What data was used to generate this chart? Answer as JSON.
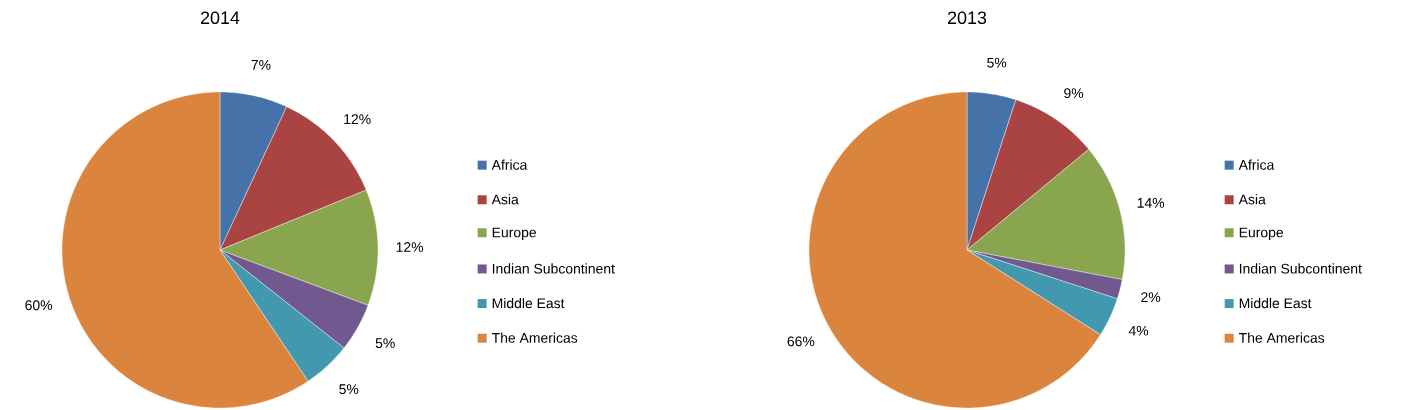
{
  "chart_data": [
    {
      "type": "pie",
      "title": "2014",
      "categories": [
        "Africa",
        "Asia",
        "Europe",
        "Indian Subcontinent",
        "Middle East",
        "The Americas"
      ],
      "values": [
        7,
        12,
        12,
        5,
        5,
        60
      ],
      "value_labels": [
        "7%",
        "12%",
        "12%",
        "5%",
        "5%",
        "60%"
      ],
      "colors": [
        "#4672aa",
        "#a94442",
        "#89a54e",
        "#71588f",
        "#4198af",
        "#db843d"
      ],
      "legend": "right"
    },
    {
      "type": "pie",
      "title": "2013",
      "categories": [
        "Africa",
        "Asia",
        "Europe",
        "Indian Subcontinent",
        "Middle East",
        "The Americas"
      ],
      "values": [
        5,
        9,
        14,
        2,
        4,
        66
      ],
      "value_labels": [
        "5%",
        "9%",
        "14%",
        "2%",
        "4%",
        "66%"
      ],
      "colors": [
        "#4672aa",
        "#a94442",
        "#89a54e",
        "#71588f",
        "#4198af",
        "#db843d"
      ],
      "legend": "right"
    }
  ]
}
